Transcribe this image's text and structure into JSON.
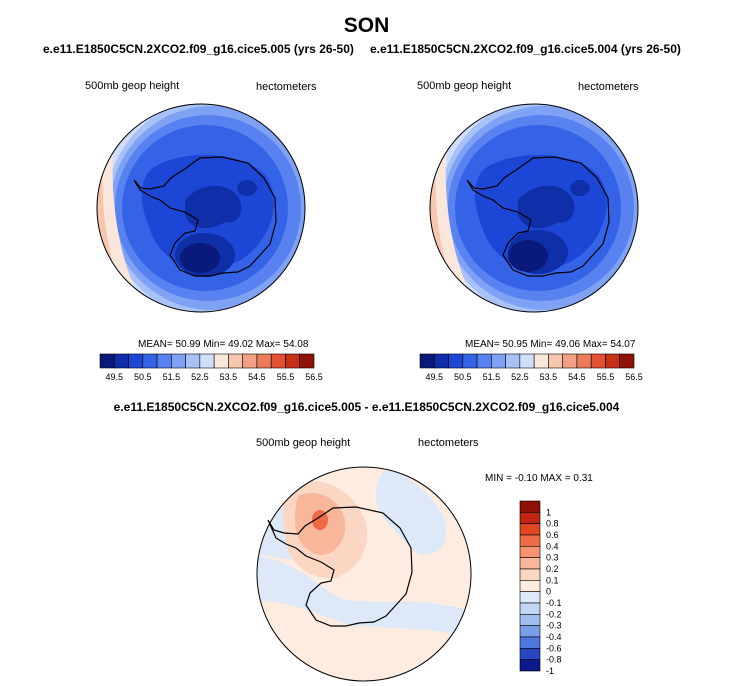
{
  "title": "SON",
  "panels": [
    {
      "case": "e.e11.E1850C5CN.2XCO2.f09_g16.cice5.005 (yrs 26-50)",
      "variable": "500mb geop height",
      "units": "hectometers",
      "stats": {
        "mean_label": "MEAN=",
        "mean": "50.99",
        "min_label": "Min=",
        "min": "49.02",
        "max_label": "Max=",
        "max": "54.08"
      },
      "colorbar_labels": [
        "49.5",
        "50.5",
        "51.5",
        "52.5",
        "53.5",
        "54.5",
        "55.5",
        "56.5"
      ]
    },
    {
      "case": "e.e11.E1850C5CN.2XCO2.f09_g16.cice5.004 (yrs 26-50)",
      "variable": "500mb geop height",
      "units": "hectometers",
      "stats": {
        "mean_label": "MEAN=",
        "mean": "50.95",
        "min_label": "Min=",
        "min": "49.06",
        "max_label": "Max=",
        "max": "54.07"
      },
      "colorbar_labels": [
        "49.5",
        "50.5",
        "51.5",
        "52.5",
        "53.5",
        "54.5",
        "55.5",
        "56.5"
      ]
    }
  ],
  "difference": {
    "title": "e.e11.E1850C5CN.2XCO2.f09_g16.cice5.005 - e.e11.E1850C5CN.2XCO2.f09_g16.cice5.004",
    "variable": "500mb geop height",
    "units": "hectometers",
    "stats": {
      "min_label": "MIN =",
      "min": "-0.10",
      "max_label": "MAX =",
      "max": "0.31"
    },
    "colorbar_labels": [
      "1",
      "0.8",
      "0.6",
      "0.4",
      "0.3",
      "0.2",
      "0.1",
      "0",
      "-0.1",
      "-0.2",
      "-0.3",
      "-0.4",
      "-0.6",
      "-0.8",
      "-1"
    ]
  },
  "colors": {
    "abs_scale": [
      "#0a1a7a",
      "#0f2fa8",
      "#1c46d6",
      "#3563e8",
      "#5882f0",
      "#7fa2f4",
      "#a8c2f8",
      "#d0defb",
      "#fbe6dc",
      "#f7c6ae",
      "#f2a084",
      "#ec7a5c",
      "#e25233",
      "#c92f17",
      "#8f1207"
    ],
    "diff_scale": [
      "#8f1207",
      "#c02613",
      "#e0461f",
      "#ee6c45",
      "#f59472",
      "#f8b79b",
      "#fbd7c3",
      "#fdecdf",
      "#dde9f8",
      "#c3d7f4",
      "#9fbdef",
      "#7a9ee8",
      "#4f76dc",
      "#2746c4",
      "#0d1a8a"
    ]
  }
}
